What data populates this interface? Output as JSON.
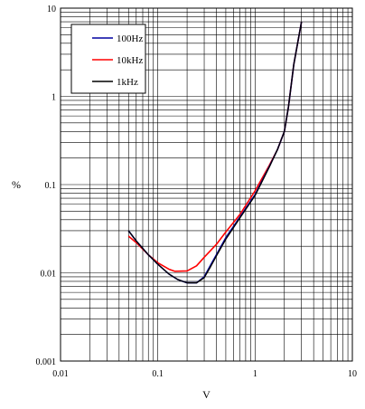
{
  "chart_data": {
    "type": "line",
    "xlabel": "V",
    "ylabel": "%",
    "x_scale": "log",
    "y_scale": "log",
    "xlim": [
      0.01,
      10
    ],
    "ylim": [
      0.001,
      10
    ],
    "grid": true,
    "legend_position": "top-left",
    "x_ticks": [
      {
        "value": 0.01,
        "label": "0.01"
      },
      {
        "value": 0.1,
        "label": "0.1"
      },
      {
        "value": 1,
        "label": "1"
      },
      {
        "value": 10,
        "label": "10"
      }
    ],
    "y_ticks": [
      {
        "value": 0.001,
        "label": "0.001"
      },
      {
        "value": 0.01,
        "label": "0.01"
      },
      {
        "value": 0.1,
        "label": "0.1"
      },
      {
        "value": 1,
        "label": "1"
      },
      {
        "value": 10,
        "label": "10"
      }
    ],
    "series": [
      {
        "name": "100Hz",
        "color": "#0000a0",
        "points": [
          [
            0.05,
            0.03
          ],
          [
            0.06,
            0.023
          ],
          [
            0.08,
            0.016
          ],
          [
            0.1,
            0.0125
          ],
          [
            0.13,
            0.0097
          ],
          [
            0.16,
            0.0084
          ],
          [
            0.2,
            0.0077
          ],
          [
            0.25,
            0.0077
          ],
          [
            0.3,
            0.009
          ],
          [
            0.35,
            0.0123
          ],
          [
            0.4,
            0.016
          ],
          [
            0.5,
            0.025
          ],
          [
            0.7,
            0.043
          ],
          [
            1.0,
            0.077
          ],
          [
            1.4,
            0.16
          ],
          [
            1.7,
            0.25
          ],
          [
            2.0,
            0.4
          ],
          [
            2.2,
            0.75
          ],
          [
            2.5,
            2.3
          ],
          [
            3.0,
            7.0
          ]
        ]
      },
      {
        "name": "10kHz",
        "color": "#ff0000",
        "points": [
          [
            0.05,
            0.026
          ],
          [
            0.06,
            0.022
          ],
          [
            0.08,
            0.016
          ],
          [
            0.1,
            0.013
          ],
          [
            0.13,
            0.011
          ],
          [
            0.15,
            0.0104
          ],
          [
            0.2,
            0.0105
          ],
          [
            0.25,
            0.012
          ],
          [
            0.3,
            0.015
          ],
          [
            0.4,
            0.021
          ],
          [
            0.5,
            0.029
          ],
          [
            0.7,
            0.046
          ],
          [
            1.0,
            0.085
          ],
          [
            1.4,
            0.165
          ],
          [
            1.7,
            0.25
          ],
          [
            2.0,
            0.4
          ],
          [
            2.2,
            0.75
          ],
          [
            2.5,
            2.3
          ],
          [
            3.0,
            7.0
          ]
        ]
      },
      {
        "name": "1kHz",
        "color": "#000000",
        "points": [
          [
            0.05,
            0.03
          ],
          [
            0.06,
            0.023
          ],
          [
            0.08,
            0.016
          ],
          [
            0.1,
            0.0125
          ],
          [
            0.13,
            0.0097
          ],
          [
            0.16,
            0.0084
          ],
          [
            0.2,
            0.0077
          ],
          [
            0.25,
            0.0077
          ],
          [
            0.3,
            0.0088
          ],
          [
            0.35,
            0.0118
          ],
          [
            0.4,
            0.0155
          ],
          [
            0.5,
            0.024
          ],
          [
            0.7,
            0.042
          ],
          [
            1.0,
            0.075
          ],
          [
            1.4,
            0.158
          ],
          [
            1.7,
            0.25
          ],
          [
            2.0,
            0.4
          ],
          [
            2.2,
            0.75
          ],
          [
            2.5,
            2.3
          ],
          [
            3.0,
            7.0
          ]
        ]
      }
    ]
  }
}
